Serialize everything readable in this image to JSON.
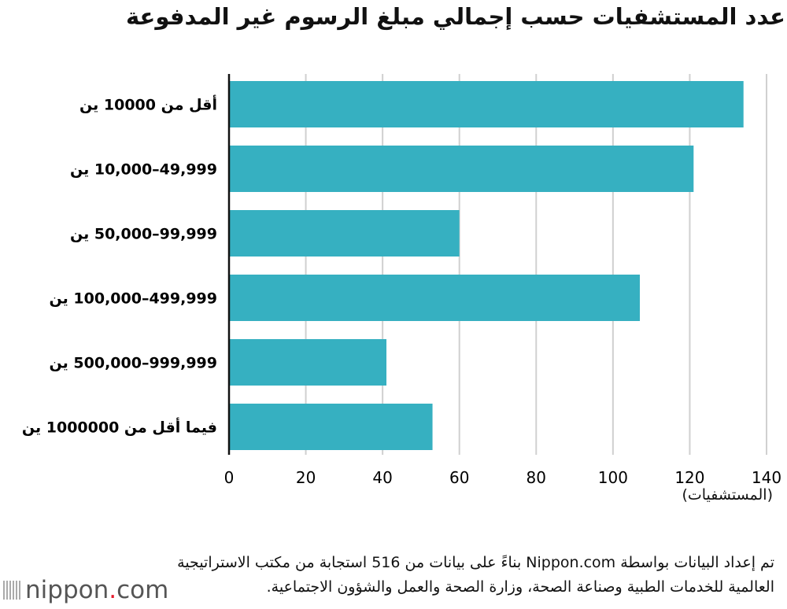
{
  "chart_data": {
    "type": "bar",
    "orientation": "horizontal",
    "title": "عدد المستشفيات حسب إجمالي مبلغ الرسوم غير المدفوعة",
    "categories": [
      "أقل من 10000 ين",
      "49,999–10,000 ين",
      "99,999–50,000 ين",
      "499,999–100,000 ين",
      "999,999–500,000 ين",
      "فيما أقل من 1000000 ين"
    ],
    "values": [
      134,
      121,
      60,
      107,
      41,
      53
    ],
    "xlabel": "(المستشفيات)",
    "xlim": [
      0,
      140
    ],
    "xticks": [
      0,
      20,
      40,
      60,
      80,
      100,
      120,
      140
    ],
    "grid": true,
    "bar_color": "#36b0c1"
  },
  "note": "تم إعداد البيانات  بواسطة Nippon.com بناءً على بيانات من 516 استجابة من مكتب الاستراتيجية العالمية للخدمات الطبية وصناعة الصحة، وزارة الصحة والعمل والشؤون الاجتماعية.",
  "logo": {
    "main": "nippon",
    "dot": ".",
    "suffix": "com"
  }
}
